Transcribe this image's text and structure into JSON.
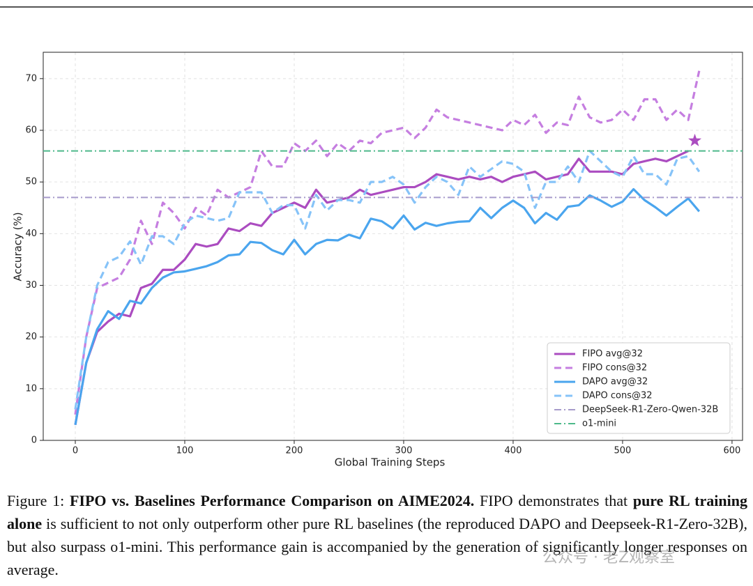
{
  "chart_data": {
    "type": "line",
    "xlabel": "Global Training Steps",
    "ylabel": "Accuracy (%)",
    "xlim": [
      -29.3,
      609.6
    ],
    "xticks": [
      0,
      100,
      200,
      300,
      400,
      500,
      600
    ],
    "ylim": [
      0,
      75.1
    ],
    "yticks": [
      0,
      10,
      20,
      30,
      40,
      50,
      60,
      70
    ],
    "grid": true,
    "legend": "lower right",
    "x": [
      0,
      10,
      20,
      30,
      40,
      50,
      60,
      70,
      80,
      90,
      100,
      110,
      120,
      130,
      140,
      150,
      160,
      170,
      180,
      190,
      200,
      210,
      220,
      230,
      240,
      250,
      260,
      270,
      280,
      290,
      300,
      310,
      320,
      330,
      340,
      350,
      360,
      370,
      380,
      390,
      400,
      410,
      420,
      430,
      440,
      450,
      460,
      470,
      480,
      490,
      500,
      510,
      520,
      530,
      540,
      550,
      560,
      570
    ],
    "series": [
      {
        "name": "FIPO avg@32",
        "color": "#ab4cc0",
        "style": "solid",
        "values": [
          3,
          15,
          21,
          23,
          24.5,
          24,
          29.5,
          30.3,
          33,
          33,
          35,
          38,
          37.5,
          38,
          41,
          40.5,
          42,
          41.5,
          44,
          45,
          46,
          45,
          48.5,
          46,
          46.5,
          47,
          48.5,
          47.5,
          48,
          48.5,
          49,
          49,
          50,
          51.5,
          51,
          50.5,
          51,
          50.5,
          51,
          50,
          51,
          51.5,
          52,
          50.5,
          51,
          51.5,
          54.5,
          52,
          52,
          52,
          51.5,
          53.5,
          54,
          54.5,
          54,
          55,
          56,
          null
        ]
      },
      {
        "name": "FIPO cons@32",
        "color": "#c57ee0",
        "style": "dashed",
        "values": [
          5,
          20,
          29.5,
          30.5,
          31.5,
          35,
          42.5,
          38,
          46,
          44,
          41,
          45,
          43.5,
          48.5,
          47,
          48,
          49,
          56,
          53,
          53,
          57.5,
          56,
          58,
          55,
          57.5,
          56,
          58,
          57.5,
          59.5,
          60,
          60.5,
          58.5,
          60.5,
          64,
          62.5,
          62,
          61.5,
          61,
          60.5,
          60,
          62,
          61,
          63,
          59.5,
          61.5,
          61,
          66.5,
          62.5,
          61.5,
          62,
          64,
          62,
          66,
          66,
          62,
          64,
          62,
          71.5
        ]
      },
      {
        "name": "DAPO avg@32",
        "color": "#4aa5ee",
        "style": "solid",
        "values": [
          3,
          15,
          21.5,
          25,
          23.5,
          27,
          26.5,
          29.5,
          31.5,
          32.5,
          32.7,
          33.2,
          33.7,
          34.5,
          35.8,
          36,
          38.4,
          38.2,
          36.8,
          36,
          38.8,
          36,
          38,
          38.8,
          38.7,
          39.8,
          39.1,
          42.9,
          42.4,
          41,
          43.5,
          40.8,
          42.1,
          41.5,
          42,
          42.3,
          42.4,
          45,
          43,
          45,
          46.4,
          45,
          42,
          44,
          42.7,
          45.2,
          45.5,
          47.4,
          46.4,
          45.2,
          46.2,
          48.6,
          46.5,
          45.1,
          43.5,
          45.2,
          46.8,
          44.3
        ]
      },
      {
        "name": "DAPO cons@32",
        "color": "#86c3f8",
        "style": "dashed",
        "values": [
          6,
          20,
          30,
          34.5,
          35.5,
          38.5,
          34,
          39.5,
          39.5,
          38,
          42,
          43.5,
          43,
          42.5,
          43,
          48,
          48,
          48,
          44,
          45.5,
          45.5,
          41,
          47.5,
          44.5,
          46.5,
          46.5,
          46,
          50,
          50,
          51,
          49.5,
          46,
          49,
          51,
          50,
          47.5,
          53,
          51,
          52.5,
          54,
          53.5,
          52,
          45,
          50,
          50,
          53,
          50,
          56,
          54,
          52,
          51,
          55,
          51.5,
          51.5,
          49.5,
          54.5,
          55,
          52
        ]
      },
      {
        "name": "DeepSeek-R1-Zero-Qwen-32B",
        "color": "#a79bcb",
        "style": "dashdot",
        "value": 47
      },
      {
        "name": "o1-mini",
        "color": "#4db98a",
        "style": "dashdot",
        "value": 56
      }
    ],
    "marker": {
      "x": 566,
      "y": 58,
      "color": "#ab4cc0"
    }
  },
  "caption": [
    "Figure 1: ",
    "FIPO vs. Baselines Performance Comparison on AIME2024.",
    " FIPO demonstrates that ",
    "pure RL training alone",
    " is sufficient to not only outperform other pure RL baselines (the reproduced DAPO and Deepseek-R1-Zero-32B), but also surpass o1-mini.  This performance gain is accompanied by the generation of significantly longer responses on average."
  ],
  "watermark": "公众号 · 老Z观察室"
}
